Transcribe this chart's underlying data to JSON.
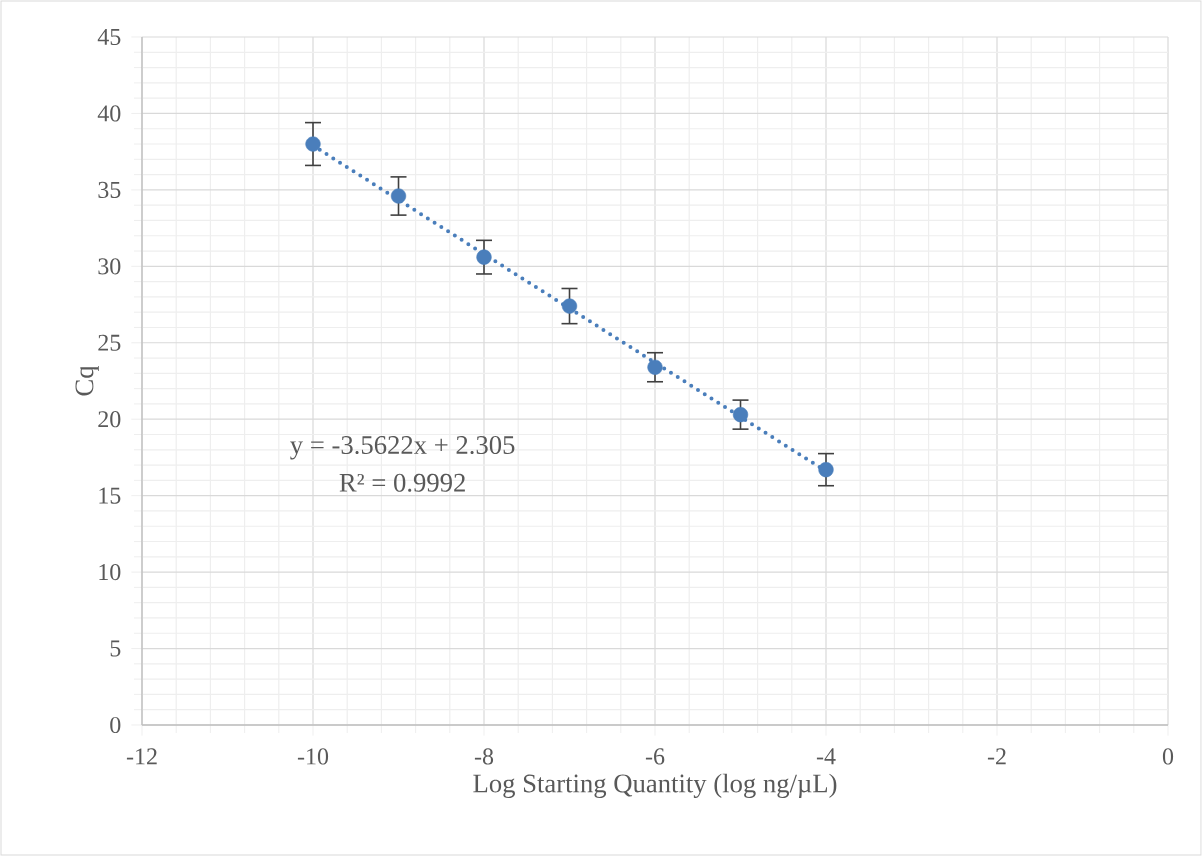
{
  "chart_data": {
    "type": "scatter",
    "xlabel": "Log Starting Quantity (log ng/µL)",
    "ylabel": "Cq",
    "xlim": [
      -12,
      0
    ],
    "xticks": [
      -12,
      -10,
      -8,
      -6,
      -4,
      -2,
      0
    ],
    "ylim": [
      0,
      45
    ],
    "yticks": [
      0,
      5,
      10,
      15,
      20,
      25,
      30,
      35,
      40,
      45
    ],
    "grid": true,
    "annotations": [
      "y = -3.5622x + 2.305",
      "R² = 0.9992"
    ],
    "series": [
      {
        "color": "#4a7ebb",
        "marker": "circle",
        "x": [
          -10,
          -9,
          -8,
          -7,
          -6,
          -5,
          -4
        ],
        "values": [
          38.0,
          34.6,
          30.6,
          27.4,
          23.4,
          20.3,
          16.7
        ],
        "errors": [
          1.4,
          1.25,
          1.1,
          1.15,
          0.95,
          0.95,
          1.05
        ]
      },
      {
        "type": "line",
        "color": "#4a7ebb",
        "line_style": "dotted",
        "x": [
          -10,
          -4
        ],
        "values": [
          37.9,
          16.6
        ]
      }
    ]
  }
}
